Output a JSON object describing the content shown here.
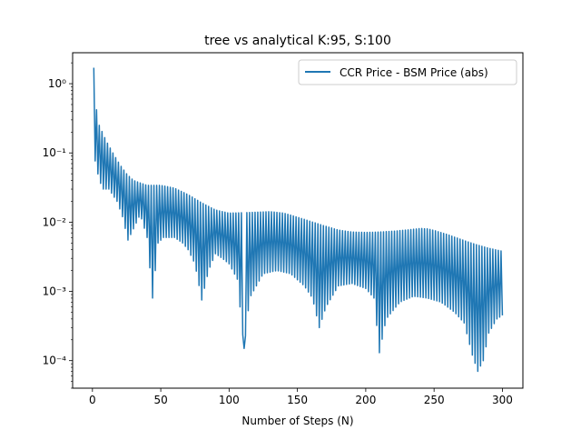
{
  "chart_data": {
    "type": "line",
    "title": "tree vs analytical K:95, S:100",
    "xlabel": "Number of Steps (N)",
    "ylabel": "",
    "xlim": [
      -14.5,
      315
    ],
    "ylim": [
      4e-05,
      2.8
    ],
    "yscale": "log",
    "grid": false,
    "legend_position": "top-right",
    "x_ticks": [
      0,
      50,
      100,
      150,
      200,
      250,
      300
    ],
    "x_tick_labels": [
      "0",
      "50",
      "100",
      "150",
      "200",
      "250",
      "300"
    ],
    "y_ticks": [
      0.0001,
      0.001,
      0.01,
      0.1,
      1
    ],
    "y_tick_labels": [
      "10⁻⁴",
      "10⁻³",
      "10⁻²",
      "10⁻¹",
      "10⁰"
    ],
    "series": [
      {
        "name": "CCR Price - BSM Price (abs)",
        "color": "#1f77b4",
        "x_range": [
          1,
          300
        ],
        "upper_envelope": [
          [
            1,
            1.7
          ],
          [
            3,
            0.42
          ],
          [
            5,
            0.25
          ],
          [
            10,
            0.15
          ],
          [
            15,
            0.1
          ],
          [
            20,
            0.068
          ],
          [
            25,
            0.05
          ],
          [
            30,
            0.04
          ],
          [
            40,
            0.034
          ],
          [
            50,
            0.034
          ],
          [
            60,
            0.031
          ],
          [
            70,
            0.025
          ],
          [
            80,
            0.019
          ],
          [
            90,
            0.015
          ],
          [
            100,
            0.0135
          ],
          [
            115,
            0.0138
          ],
          [
            130,
            0.0142
          ],
          [
            140,
            0.0135
          ],
          [
            150,
            0.0118
          ],
          [
            160,
            0.0102
          ],
          [
            170,
            0.0088
          ],
          [
            180,
            0.0077
          ],
          [
            190,
            0.0072
          ],
          [
            200,
            0.0071
          ],
          [
            210,
            0.0072
          ],
          [
            220,
            0.0074
          ],
          [
            230,
            0.0077
          ],
          [
            240,
            0.0081
          ],
          [
            245,
            0.008
          ],
          [
            250,
            0.0076
          ],
          [
            260,
            0.0066
          ],
          [
            270,
            0.0056
          ],
          [
            280,
            0.0048
          ],
          [
            290,
            0.0042
          ],
          [
            300,
            0.0038
          ]
        ],
        "lower_envelope": [
          [
            1,
            0.095
          ],
          [
            5,
            0.04
          ],
          [
            8,
            0.03
          ],
          [
            12,
            0.03
          ],
          [
            18,
            0.02
          ],
          [
            22,
            0.012
          ],
          [
            26,
            0.0055
          ],
          [
            30,
            0.008
          ],
          [
            35,
            0.013
          ],
          [
            40,
            0.006
          ],
          [
            44,
            0.0008
          ],
          [
            48,
            0.005
          ],
          [
            52,
            0.006
          ],
          [
            60,
            0.006
          ],
          [
            66,
            0.005
          ],
          [
            70,
            0.004
          ],
          [
            75,
            0.0025
          ],
          [
            80,
            0.00075
          ],
          [
            85,
            0.002
          ],
          [
            90,
            0.0035
          ],
          [
            95,
            0.003
          ],
          [
            100,
            0.0025
          ],
          [
            106,
            0.0015
          ],
          [
            111,
            0.00015
          ],
          [
            115,
            0.0008
          ],
          [
            125,
            0.0018
          ],
          [
            135,
            0.002
          ],
          [
            145,
            0.0018
          ],
          [
            155,
            0.0012
          ],
          [
            161,
            0.0008
          ],
          [
            166,
            0.0003
          ],
          [
            171,
            0.0006
          ],
          [
            180,
            0.0012
          ],
          [
            190,
            0.0013
          ],
          [
            200,
            0.0011
          ],
          [
            206,
            0.0008
          ],
          [
            210,
            0.00013
          ],
          [
            215,
            0.0004
          ],
          [
            225,
            0.0007
          ],
          [
            235,
            0.00085
          ],
          [
            245,
            0.0008
          ],
          [
            255,
            0.0007
          ],
          [
            265,
            0.0005
          ],
          [
            272,
            0.00035
          ],
          [
            278,
            0.00012
          ],
          [
            282,
            7e-05
          ],
          [
            286,
            0.0001
          ],
          [
            290,
            0.00025
          ],
          [
            296,
            0.0004
          ],
          [
            300,
            0.00045
          ]
        ],
        "dips": [
          [
            26,
            0.0055
          ],
          [
            44,
            0.0008
          ],
          [
            80,
            0.00075
          ],
          [
            111,
            0.00015
          ],
          [
            166,
            0.0003
          ],
          [
            210,
            0.00013
          ],
          [
            282,
            7e-05
          ]
        ]
      }
    ]
  }
}
